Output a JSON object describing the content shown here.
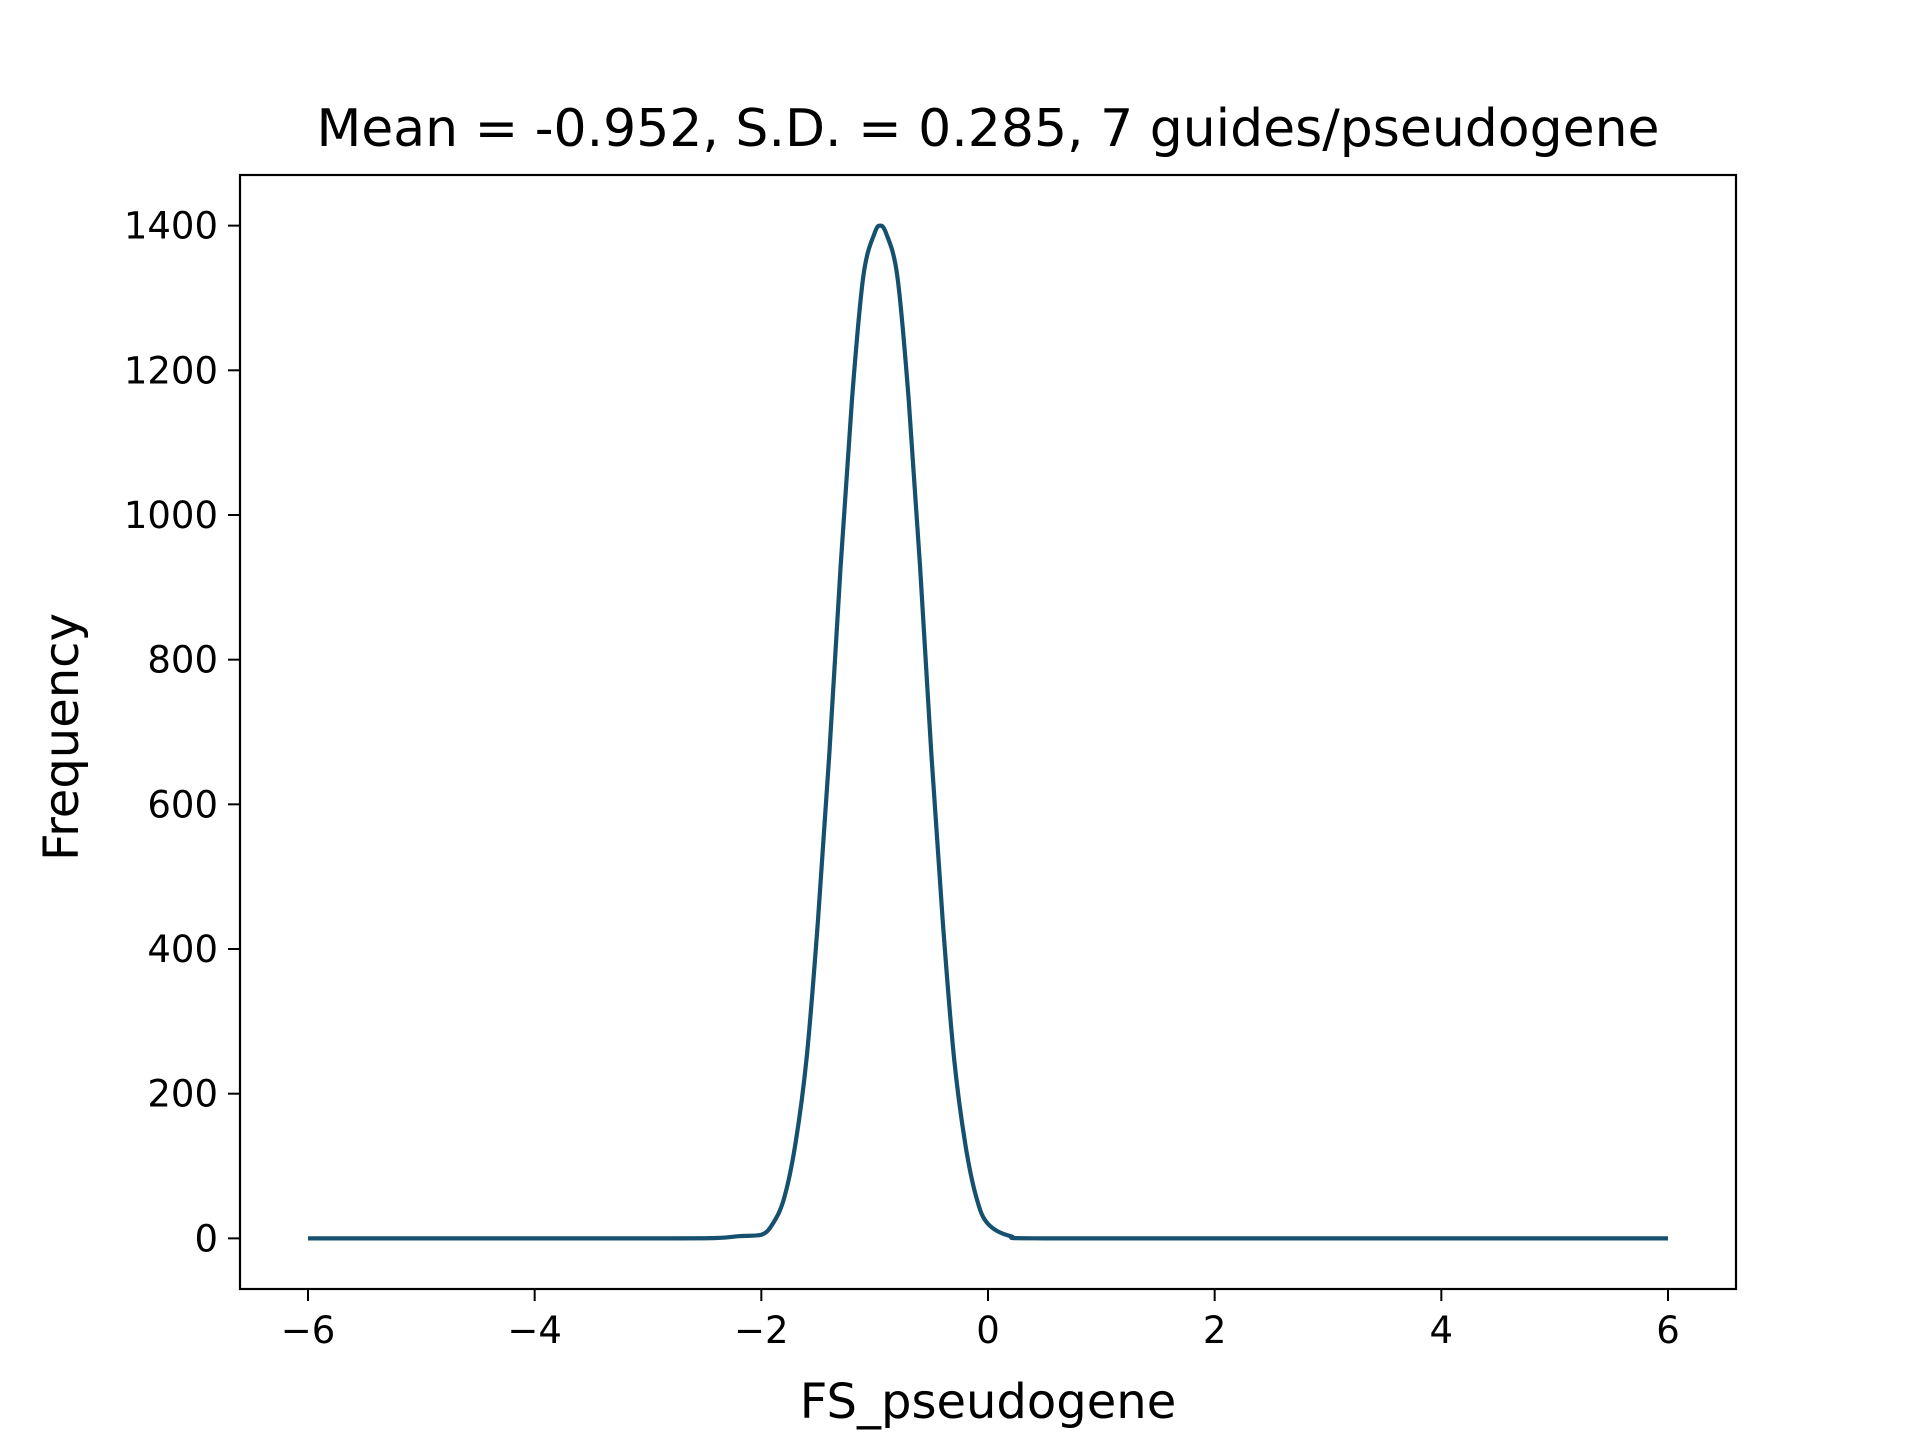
{
  "chart_data": {
    "type": "line",
    "title": "Mean = -0.952,  S.D. = 0.285, 7 guides/pseudogene",
    "xlabel": "FS_pseudogene",
    "ylabel": "Frequency",
    "xlim": [
      -6.6,
      6.6
    ],
    "ylim": [
      -70,
      1470
    ],
    "xticks": [
      -6,
      -4,
      -2,
      0,
      2,
      4,
      6
    ],
    "xtick_labels": [
      "−6",
      "−4",
      "−2",
      "0",
      "2",
      "4",
      "6"
    ],
    "yticks": [
      0,
      200,
      400,
      600,
      800,
      1000,
      1200,
      1400
    ],
    "ytick_labels": [
      "0",
      "200",
      "400",
      "600",
      "800",
      "1000",
      "1200",
      "1400"
    ],
    "grid": false,
    "series": [
      {
        "color": "#15506e",
        "x": [
          -6.0,
          -3.0,
          -2.4,
          -2.2,
          -2.0,
          -1.9,
          -1.8,
          -1.7,
          -1.6,
          -1.5,
          -1.4,
          -1.3,
          -1.2,
          -1.1,
          -1.0,
          -0.952,
          -0.9,
          -0.8,
          -0.7,
          -0.6,
          -0.5,
          -0.4,
          -0.3,
          -0.2,
          -0.1,
          0.0,
          0.2,
          0.5,
          3.0,
          6.0
        ],
        "y": [
          0,
          0,
          0.5,
          3,
          5,
          20,
          55,
          130,
          250,
          440,
          670,
          930,
          1160,
          1330,
          1390,
          1400,
          1390,
          1330,
          1160,
          930,
          670,
          440,
          250,
          130,
          55,
          20,
          3,
          0,
          0,
          0
        ]
      }
    ]
  }
}
